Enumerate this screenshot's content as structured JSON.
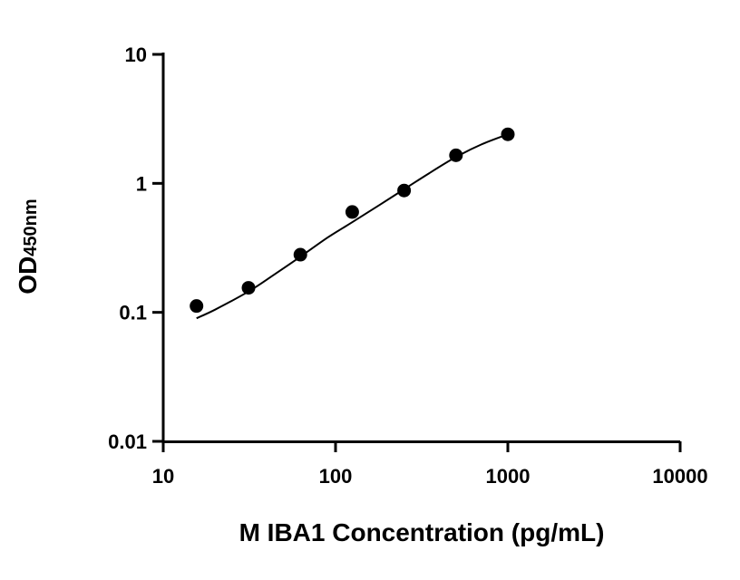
{
  "chart_data": {
    "type": "scatter",
    "xlabel": "M IBA1 Concentration (pg/mL)",
    "ylabel": {
      "main": "OD",
      "sub": "450nm"
    },
    "xscale": "log",
    "yscale": "log",
    "xlim": [
      10,
      10000
    ],
    "ylim": [
      0.01,
      10
    ],
    "xticks": [
      "10",
      "100",
      "1000",
      "10000"
    ],
    "yticks": [
      "0.01",
      "0.1",
      "1",
      "10"
    ],
    "grid": false,
    "legend": "none",
    "series": [
      {
        "kind": "points",
        "x": [
          15.6,
          31.25,
          62.5,
          125,
          250,
          500,
          1000
        ],
        "y": [
          0.112,
          0.155,
          0.28,
          0.6,
          0.88,
          1.65,
          2.4
        ]
      },
      {
        "kind": "fit-curve",
        "x": [
          15.6,
          20,
          31.25,
          45,
          62.5,
          90,
          125,
          180,
          250,
          350,
          500,
          700,
          1000
        ],
        "y": [
          0.09,
          0.105,
          0.145,
          0.2,
          0.27,
          0.38,
          0.5,
          0.68,
          0.9,
          1.2,
          1.6,
          2.0,
          2.4
        ]
      }
    ]
  }
}
